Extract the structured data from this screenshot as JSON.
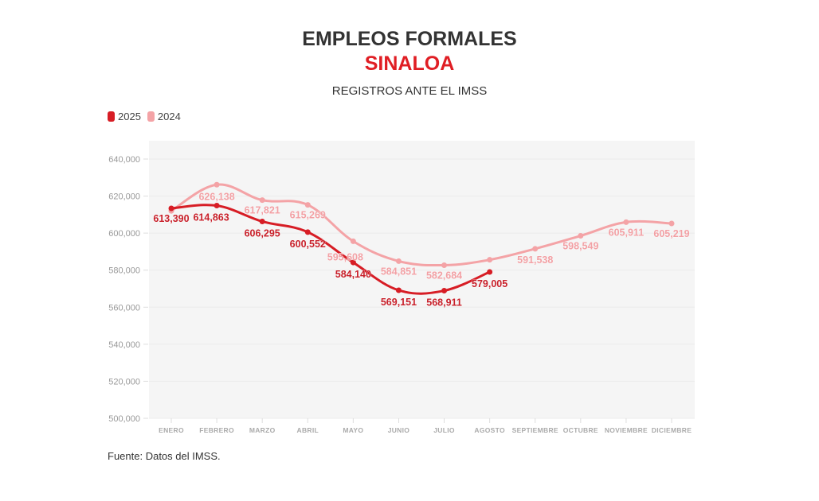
{
  "header": {
    "title": "EMPLEOS FORMALES",
    "region": "SINALOA",
    "subtitle": "REGISTROS ANTE EL IMSS"
  },
  "legend": [
    {
      "label": "2025",
      "color": "#d71d25"
    },
    {
      "label": "2024",
      "color": "#f4a3a6"
    }
  ],
  "footer": {
    "source": "Fuente: Datos del IMSS."
  },
  "chart_data": {
    "type": "line",
    "title": "EMPLEOS FORMALES SINALOA",
    "subtitle": "REGISTROS ANTE EL IMSS",
    "xlabel": "",
    "ylabel": "",
    "categories": [
      "ENERO",
      "FEBRERO",
      "MARZO",
      "ABRIL",
      "MAYO",
      "JUNIO",
      "JULIO",
      "AGOSTO",
      "SEPTIEMBRE",
      "OCTUBRE",
      "NOVIEMBRE",
      "DICIEMBRE"
    ],
    "ylim": [
      500000,
      640000
    ],
    "yticks": [
      500000,
      520000,
      540000,
      560000,
      580000,
      600000,
      620000,
      640000
    ],
    "ytick_labels": [
      "500,000",
      "520,000",
      "540,000",
      "560,000",
      "580,000",
      "600,000",
      "620,000",
      "640,000"
    ],
    "grid": true,
    "legend_position": "top-left",
    "series": [
      {
        "name": "2024",
        "color": "#f4a3a6",
        "values": [
          612000,
          626138,
          617821,
          615269,
          595608,
          584851,
          582684,
          585600,
          591538,
          598549,
          605911,
          605219
        ],
        "labels": [
          "",
          "626,138",
          "617,821",
          "615,269",
          "595,608",
          "584,851",
          "582,684",
          "",
          "591,538",
          "598,549",
          "605,911",
          "605,219"
        ]
      },
      {
        "name": "2025",
        "color": "#d71d25",
        "values": [
          613390,
          614863,
          606295,
          600552,
          584140,
          569151,
          568911,
          579005
        ],
        "labels": [
          "613,390",
          "614,863",
          "606,295",
          "600,552",
          "584,140",
          "569,151",
          "568,911",
          "579,005"
        ]
      }
    ]
  }
}
